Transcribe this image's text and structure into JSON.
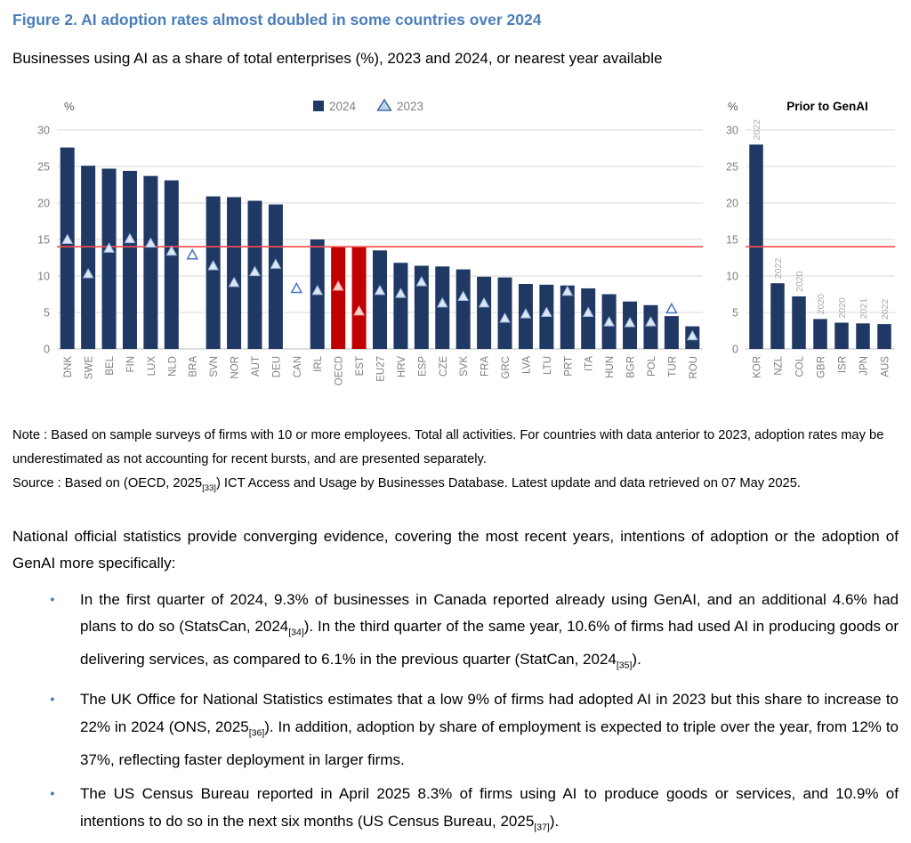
{
  "page": {
    "title": "Figure 2. AI adoption rates almost doubled in some countries over 2024",
    "subtitle": "Businesses using AI as a share of total enterprises (%), 2023 and 2024, or nearest year available"
  },
  "colors": {
    "title_blue": "#4A7EBB",
    "bar_navy": "#1F3864",
    "bar_red": "#C00000",
    "reference_red": "#FF4B4B",
    "gridline": "#D9D9D9",
    "axis_gray": "#BFBFBF",
    "tick_gray": "#7F7F7F",
    "year_label_gray": "#ABABAB",
    "bullet_blue": "#4A7EBB"
  },
  "chart_data": [
    {
      "type": "bar",
      "percent_label": "%",
      "legend": [
        {
          "label": "2024",
          "marker": "square",
          "color": "#1F3864"
        },
        {
          "label": "2023",
          "marker": "triangle-outline",
          "color": "#2F5597"
        }
      ],
      "ylim": [
        0,
        30
      ],
      "yticks": [
        0,
        5,
        10,
        15,
        20,
        25,
        30
      ],
      "grid": true,
      "legend_position": "top-center",
      "bar_color": "#1F3864",
      "highlight_categories": [
        "OECD",
        "EST"
      ],
      "highlight_color": "#C00000",
      "reference_line": {
        "value": 14.0,
        "color": "#FF4B4B"
      },
      "categories": [
        "DNK",
        "SWE",
        "BEL",
        "FIN",
        "LUX",
        "NLD",
        "BRA",
        "SVN",
        "NOR",
        "AUT",
        "DEU",
        "CAN",
        "IRL",
        "OECD",
        "EST",
        "EU27",
        "HRV",
        "ESP",
        "CZE",
        "SVK",
        "FRA",
        "GRC",
        "LVA",
        "LTU",
        "PRT",
        "ITA",
        "HUN",
        "BGR",
        "POL",
        "TUR",
        "ROU"
      ],
      "series": [
        {
          "name": "2024",
          "marker": "bar",
          "values": [
            27.6,
            25.1,
            24.7,
            24.4,
            23.7,
            23.1,
            null,
            20.9,
            20.8,
            20.3,
            19.8,
            null,
            15.0,
            14.0,
            14.0,
            13.5,
            11.8,
            11.4,
            11.3,
            10.9,
            9.9,
            9.8,
            8.9,
            8.8,
            8.7,
            8.3,
            7.5,
            6.5,
            6.0,
            4.5,
            3.1
          ]
        },
        {
          "name": "2023",
          "marker": "triangle",
          "values": [
            15.0,
            10.3,
            13.8,
            15.1,
            14.5,
            13.4,
            12.9,
            11.4,
            9.1,
            10.6,
            11.6,
            8.3,
            8.0,
            8.6,
            5.2,
            8.0,
            7.6,
            9.2,
            6.3,
            7.2,
            6.3,
            4.2,
            4.8,
            5.0,
            7.9,
            5.0,
            3.7,
            3.6,
            3.7,
            5.5,
            1.8
          ]
        }
      ]
    },
    {
      "type": "bar",
      "title": "Prior to GenAI",
      "percent_label": "%",
      "ylim": [
        0,
        30
      ],
      "yticks": [
        0,
        5,
        10,
        15,
        20,
        25,
        30
      ],
      "grid": true,
      "bar_color": "#1F3864",
      "reference_line": {
        "value": 14.0,
        "color": "#FF4B4B"
      },
      "categories": [
        "KOR",
        "NZL",
        "COL",
        "GBR",
        "ISR",
        "JPN",
        "AUS"
      ],
      "series": [
        {
          "name": "adoption",
          "marker": "bar",
          "values": [
            28.0,
            9.0,
            7.2,
            4.1,
            3.6,
            3.5,
            3.4
          ]
        }
      ],
      "bar_year_labels": [
        "2022",
        "2022",
        "2020",
        "2020",
        "2020",
        "2021",
        "2022"
      ]
    }
  ],
  "note": {
    "note_segments": [
      {
        "t": "Note : Based on sample surveys of firms with 10 or more employees. Total all activities. For countries with data anterior to 2023, adoption rates may be underestimated as not accounting for recent bursts, and are presented separately."
      }
    ],
    "source_segments": [
      {
        "t": "Source : Based on (OECD, 2025"
      },
      {
        "t": "[33]",
        "sub": true
      },
      {
        "t": ") ICT Access and Usage by Businesses Database. Latest update and data retrieved on 07 May 2025."
      }
    ]
  },
  "body": {
    "paragraph": "National official statistics provide converging evidence, covering the most recent years, intentions of adoption or the adoption of GenAI more specifically:",
    "bullets": [
      {
        "segments": [
          {
            "t": "In the first quarter of 2024, 9.3% of businesses in Canada reported already using GenAI, and an additional 4.6% had plans to do so (StatsCan, 2024"
          },
          {
            "t": "[34]",
            "sub": true
          },
          {
            "t": "). In the third quarter of the same year, 10.6% of firms had used AI in producing goods or delivering services, as compared to 6.1% in the previous quarter (StatCan, 2024"
          },
          {
            "t": "[35]",
            "sub": true
          },
          {
            "t": ")."
          }
        ]
      },
      {
        "segments": [
          {
            "t": "The UK Office for National Statistics estimates that a low 9% of firms had adopted AI in 2023 but this share to increase to 22% in 2024 (ONS, 2025"
          },
          {
            "t": "[36]",
            "sub": true
          },
          {
            "t": "). In addition, adoption by share of employment is expected to triple over the year, from 12% to 37%, reflecting faster deployment in larger firms."
          }
        ]
      },
      {
        "segments": [
          {
            "t": "The US Census Bureau reported in April 2025 8.3% of firms using AI to produce goods or services, and 10.9% of intentions to do so in the next six months (US Census Bureau, 2025"
          },
          {
            "t": "[37]",
            "sub": true
          },
          {
            "t": ")."
          }
        ]
      }
    ]
  }
}
